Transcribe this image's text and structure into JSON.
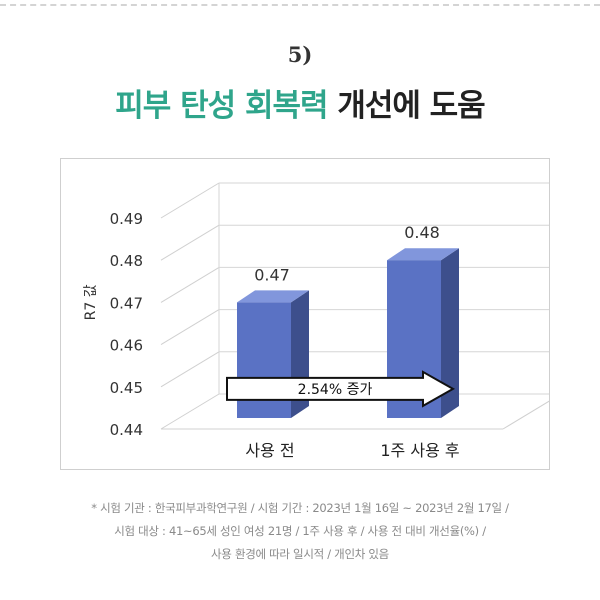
{
  "header": {
    "step_number": "5)",
    "headline_accent": "피부 탄성 회복력",
    "headline_rest": "개선에 도움"
  },
  "chart_data": {
    "type": "bar",
    "categories": [
      "사용 전",
      "1주 사용 후"
    ],
    "values": [
      0.47,
      0.48
    ],
    "data_labels": [
      "0.47",
      "0.48"
    ],
    "ylabel": "R7 값",
    "ylim": [
      0.44,
      0.49
    ],
    "yticks": [
      "0.49",
      "0.48",
      "0.47",
      "0.46",
      "0.45",
      "0.44"
    ],
    "grid": true,
    "bar_color": "#5a72c4",
    "annotation": "2.54% 증가"
  },
  "footnote": {
    "line1": "* 시험 기관 : 한국피부과학연구원  / 시험 기간 : 2023년 1월 16일 ~ 2023년 2월 17일 /",
    "line2": "시험 대상 : 41~65세 성인 여성 21명 / 1주 사용 후 / 사용 전 대비 개선율(%) /",
    "line3": "사용 환경에 따라 일시적 / 개인차 있음"
  }
}
